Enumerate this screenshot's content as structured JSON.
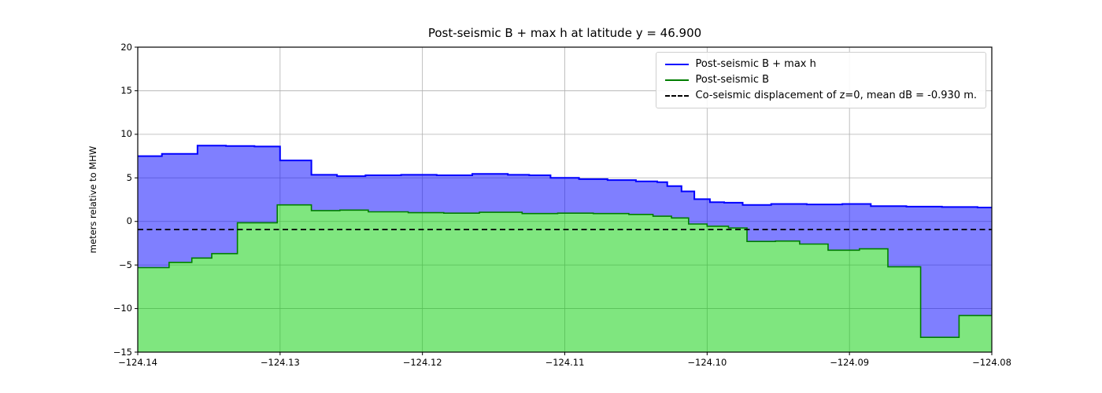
{
  "chart_data": {
    "type": "area",
    "title": "Post-seismic B + max h at latitude y = 46.900",
    "ylabel": "meters relative to MHW",
    "xlabel": "",
    "xlim": [
      -124.14,
      -124.08
    ],
    "ylim": [
      -15,
      20
    ],
    "grid": true,
    "legend_position": "upper right",
    "x_ticks": [
      {
        "v": -124.14,
        "label": "−124.14"
      },
      {
        "v": -124.13,
        "label": "−124.13"
      },
      {
        "v": -124.12,
        "label": "−124.12"
      },
      {
        "v": -124.11,
        "label": "−124.11"
      },
      {
        "v": -124.1,
        "label": "−124.10"
      },
      {
        "v": -124.09,
        "label": "−124.09"
      },
      {
        "v": -124.08,
        "label": "−124.08"
      }
    ],
    "y_ticks": [
      {
        "v": 20,
        "label": "20"
      },
      {
        "v": 15,
        "label": "15"
      },
      {
        "v": 10,
        "label": "10"
      },
      {
        "v": 5,
        "label": "5"
      },
      {
        "v": 0,
        "label": "0"
      },
      {
        "v": -5,
        "label": "−5"
      },
      {
        "v": -10,
        "label": "−10"
      },
      {
        "v": -15,
        "label": "−15"
      }
    ],
    "series": [
      {
        "name": "Post-seismic B + max h",
        "type": "step",
        "line_color": "#0000ff",
        "line_width": 2,
        "fill": "to_lower_series",
        "fill_color": "rgba(0,0,255,0.5)",
        "points": [
          [
            -124.14,
            7.5
          ],
          [
            -124.1383,
            7.75
          ],
          [
            -124.1358,
            8.7
          ],
          [
            -124.1338,
            8.65
          ],
          [
            -124.1318,
            8.6
          ],
          [
            -124.13,
            7.0
          ],
          [
            -124.1278,
            5.35
          ],
          [
            -124.126,
            5.2
          ],
          [
            -124.124,
            5.3
          ],
          [
            -124.1215,
            5.35
          ],
          [
            -124.119,
            5.3
          ],
          [
            -124.1165,
            5.45
          ],
          [
            -124.114,
            5.35
          ],
          [
            -124.1125,
            5.3
          ],
          [
            -124.111,
            5.0
          ],
          [
            -124.109,
            4.85
          ],
          [
            -124.107,
            4.75
          ],
          [
            -124.105,
            4.6
          ],
          [
            -124.1035,
            4.5
          ],
          [
            -124.1028,
            4.05
          ],
          [
            -124.1018,
            3.45
          ],
          [
            -124.1009,
            2.55
          ],
          [
            -124.0998,
            2.2
          ],
          [
            -124.0988,
            2.15
          ],
          [
            -124.0975,
            1.9
          ],
          [
            -124.0955,
            2.0
          ],
          [
            -124.093,
            1.95
          ],
          [
            -124.0905,
            2.0
          ],
          [
            -124.0885,
            1.75
          ],
          [
            -124.086,
            1.7
          ],
          [
            -124.0835,
            1.65
          ],
          [
            -124.081,
            1.6
          ]
        ]
      },
      {
        "name": "Post-seismic B",
        "type": "step",
        "line_color": "#007d00",
        "line_width": 1.6,
        "fill": "to_bottom",
        "fill_color": "rgba(0,205,0,0.5)",
        "points": [
          [
            -124.14,
            -5.3
          ],
          [
            -124.1378,
            -4.7
          ],
          [
            -124.1362,
            -4.2
          ],
          [
            -124.1348,
            -3.7
          ],
          [
            -124.133,
            -0.15
          ],
          [
            -124.1302,
            1.9
          ],
          [
            -124.1278,
            1.25
          ],
          [
            -124.1258,
            1.3
          ],
          [
            -124.1238,
            1.1
          ],
          [
            -124.121,
            1.0
          ],
          [
            -124.1185,
            0.95
          ],
          [
            -124.116,
            1.05
          ],
          [
            -124.113,
            0.9
          ],
          [
            -124.1105,
            0.95
          ],
          [
            -124.108,
            0.9
          ],
          [
            -124.1055,
            0.8
          ],
          [
            -124.1038,
            0.6
          ],
          [
            -124.1025,
            0.4
          ],
          [
            -124.1013,
            -0.3
          ],
          [
            -124.1,
            -0.55
          ],
          [
            -124.0985,
            -0.75
          ],
          [
            -124.0972,
            -2.3
          ],
          [
            -124.0952,
            -2.25
          ],
          [
            -124.0935,
            -2.6
          ],
          [
            -124.0915,
            -3.3
          ],
          [
            -124.0893,
            -3.15
          ],
          [
            -124.0873,
            -5.2
          ],
          [
            -124.085,
            -13.3
          ],
          [
            -124.0823,
            -10.8
          ]
        ]
      }
    ],
    "hline": {
      "y": -0.93,
      "color": "#000000",
      "style": "dashed",
      "label": "Co-seismic displacement of z=0, mean dB = -0.930 m."
    },
    "legend": [
      {
        "label": "Post-seismic B + max h",
        "color": "#0000ff",
        "dash": false
      },
      {
        "label": "Post-seismic B",
        "color": "#007d00",
        "dash": false
      },
      {
        "label": "Co-seismic displacement of z=0, mean dB = -0.930 m.",
        "color": "#000000",
        "dash": true
      }
    ]
  }
}
